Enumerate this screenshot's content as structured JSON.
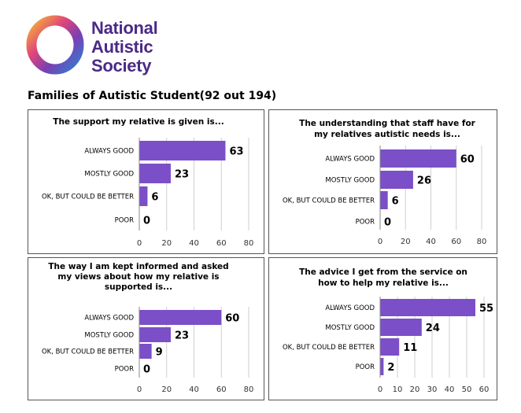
{
  "brand": {
    "name_lines": [
      "National",
      "Autistic",
      "Society"
    ],
    "colors": {
      "text": "#4b2a86",
      "ring": [
        "#2f7fd1",
        "#7b3fb3",
        "#e0457b",
        "#f5b335"
      ]
    }
  },
  "page": {
    "title": "Families of Autistic Student(92 out 194)"
  },
  "colors": {
    "bar": "#7b4fc7",
    "grid": "#cfcfcf",
    "axis": "#888888",
    "text": "#000000"
  },
  "chart_data": [
    {
      "type": "bar",
      "orientation": "horizontal",
      "title_lines": [
        "The support my relative is given is..."
      ],
      "categories": [
        "ALWAYS GOOD",
        "MOSTLY GOOD",
        "OK, BUT COULD BE BETTER",
        "POOR"
      ],
      "values": [
        63,
        23,
        6,
        0
      ],
      "xlim": [
        0,
        80
      ],
      "ticks": [
        0,
        20,
        40,
        60,
        80
      ],
      "grid": true
    },
    {
      "type": "bar",
      "orientation": "horizontal",
      "title_lines": [
        "The understanding that staff have for",
        "my relatives autistic needs is..."
      ],
      "categories": [
        "ALWAYS GOOD",
        "MOSTLY GOOD",
        "OK, BUT COULD BE BETTER",
        "POOR"
      ],
      "values": [
        60,
        26,
        6,
        0
      ],
      "xlim": [
        0,
        80
      ],
      "ticks": [
        0,
        20,
        40,
        60,
        80
      ],
      "grid": true
    },
    {
      "type": "bar",
      "orientation": "horizontal",
      "title_lines": [
        "The way I am kept informed and asked",
        "my views about how my relative is",
        "supported is..."
      ],
      "categories": [
        "ALWAYS GOOD",
        "MOSTLY GOOD",
        "OK, BUT COULD BE BETTER",
        "POOR"
      ],
      "values": [
        60,
        23,
        9,
        0
      ],
      "xlim": [
        0,
        80
      ],
      "ticks": [
        0,
        20,
        40,
        60,
        80
      ],
      "grid": true
    },
    {
      "type": "bar",
      "orientation": "horizontal",
      "title_lines": [
        "The advice I get from the service on",
        "how to help my relative is..."
      ],
      "categories": [
        "ALWAYS GOOD",
        "MOSTLY GOOD",
        "OK, BUT COULD BE BETTER",
        "POOR"
      ],
      "values": [
        55,
        24,
        11,
        2
      ],
      "xlim": [
        0,
        60
      ],
      "ticks": [
        0,
        10,
        20,
        30,
        40,
        50,
        60
      ],
      "grid": true
    }
  ]
}
